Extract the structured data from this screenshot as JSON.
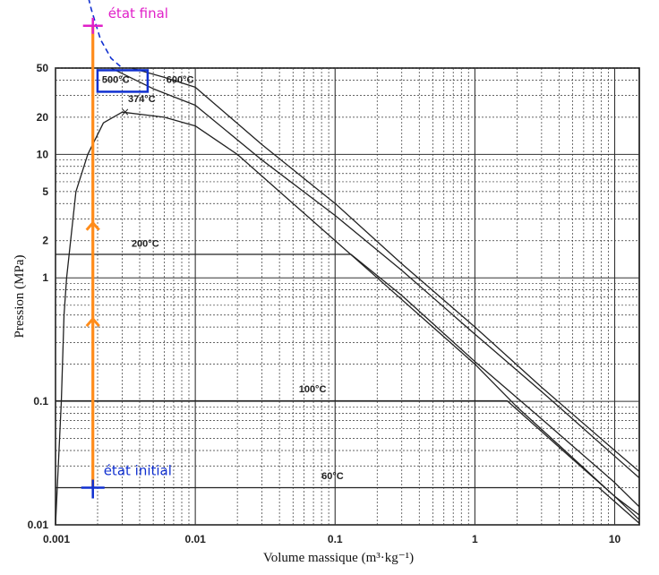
{
  "chart_data": {
    "type": "line",
    "xlabel": "Volume massique (m³·kg⁻¹)",
    "ylabel": "Pression (MPa)",
    "x_scale": "log",
    "y_scale": "log",
    "xlim": [
      0.001,
      15
    ],
    "ylim": [
      0.01,
      50
    ],
    "x_ticks": [
      {
        "value": 0.001,
        "label": "0.001"
      },
      {
        "value": 0.01,
        "label": "0.01"
      },
      {
        "value": 0.1,
        "label": "0.1"
      },
      {
        "value": 1,
        "label": "1"
      },
      {
        "value": 10,
        "label": "10"
      }
    ],
    "y_ticks": [
      {
        "value": 0.01,
        "label": "0.01"
      },
      {
        "value": 0.1,
        "label": "0.1"
      },
      {
        "value": 1,
        "label": "1"
      },
      {
        "value": 2,
        "label": "2"
      },
      {
        "value": 5,
        "label": "5"
      },
      {
        "value": 10,
        "label": "10"
      },
      {
        "value": 20,
        "label": "20"
      },
      {
        "value": 50,
        "label": "50"
      }
    ],
    "grid": true,
    "saturation_dome": {
      "liquid": {
        "x": [
          0.001,
          0.0011,
          0.00115,
          0.0012,
          0.0014,
          0.0017,
          0.0022,
          0.003
        ],
        "y": [
          0.01,
          0.1,
          0.5,
          1,
          5,
          10,
          18,
          22
        ]
      },
      "vapor": {
        "x": [
          0.003,
          0.006,
          0.01,
          0.02,
          0.04,
          0.1,
          0.2,
          0.5,
          1,
          2,
          5,
          10,
          15
        ],
        "y": [
          22,
          20,
          17,
          10,
          5,
          2,
          1,
          0.4,
          0.2,
          0.09,
          0.035,
          0.017,
          0.012
        ]
      }
    },
    "critical_point": {
      "label": "374°C",
      "x": 0.0031,
      "y": 22
    },
    "isotherms": [
      {
        "label": "600°C",
        "x": [
          0.0035,
          0.006,
          0.01,
          0.03,
          0.1,
          0.3,
          1,
          3,
          10,
          15
        ],
        "y": [
          50,
          42,
          35,
          12,
          4,
          1.3,
          0.4,
          0.13,
          0.04,
          0.027
        ]
      },
      {
        "label": "500°C",
        "x": [
          0.0025,
          0.005,
          0.01,
          0.03,
          0.1,
          0.3,
          1,
          3,
          10,
          15
        ],
        "y": [
          50,
          34,
          25,
          9,
          3.2,
          1.15,
          0.35,
          0.12,
          0.036,
          0.024
        ]
      },
      {
        "label": "200°C",
        "x": [
          0.001,
          0.13,
          0.3,
          1,
          3,
          10,
          15
        ],
        "y": [
          1.55,
          1.55,
          0.72,
          0.21,
          0.072,
          0.022,
          0.014
        ]
      },
      {
        "label": "100°C",
        "x": [
          0.001,
          1.7,
          5,
          10,
          15
        ],
        "y": [
          0.101,
          0.101,
          0.034,
          0.017,
          0.011
        ]
      },
      {
        "label": "60°C",
        "x": [
          0.001,
          7.7,
          15
        ],
        "y": [
          0.02,
          0.02,
          0.0103
        ]
      }
    ],
    "annotations": {
      "final_state": {
        "label": "état final",
        "x": 0.00185,
        "y": 110
      },
      "initial_state": {
        "label": "état initial",
        "x": 0.00185,
        "y": 0.02
      },
      "process_line": {
        "x": 0.00185,
        "y_from": 0.02,
        "y_to": 110
      }
    },
    "colors": {
      "process": "#ff8c1a",
      "final": "#e020c8",
      "initial": "#1030d0",
      "box": "#1030d0",
      "dashed": "#1030d0",
      "curve": "#222222",
      "grid": "#333333"
    }
  }
}
